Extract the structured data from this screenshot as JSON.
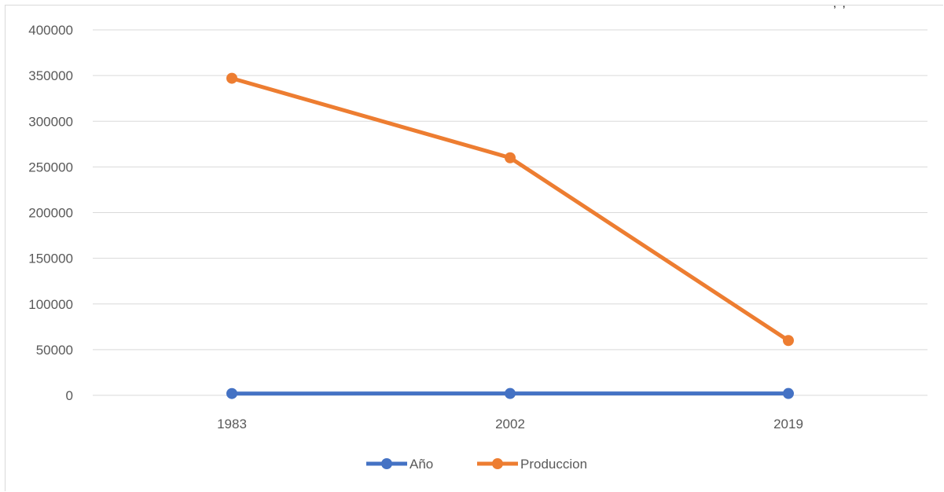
{
  "page_fragment": ", ,",
  "chart_data": {
    "type": "line",
    "categories": [
      "1983",
      "2002",
      "2019"
    ],
    "ylim": [
      0,
      400000
    ],
    "yticks": [
      0,
      50000,
      100000,
      150000,
      200000,
      250000,
      300000,
      350000,
      400000
    ],
    "grid": true,
    "legend_position": "bottom",
    "series": [
      {
        "name": "Año",
        "values": [
          1983,
          2002,
          2019
        ],
        "color": "#4472c4"
      },
      {
        "name": "Produccion",
        "values": [
          347000,
          260000,
          60000
        ],
        "color": "#ed7d31"
      }
    ]
  }
}
